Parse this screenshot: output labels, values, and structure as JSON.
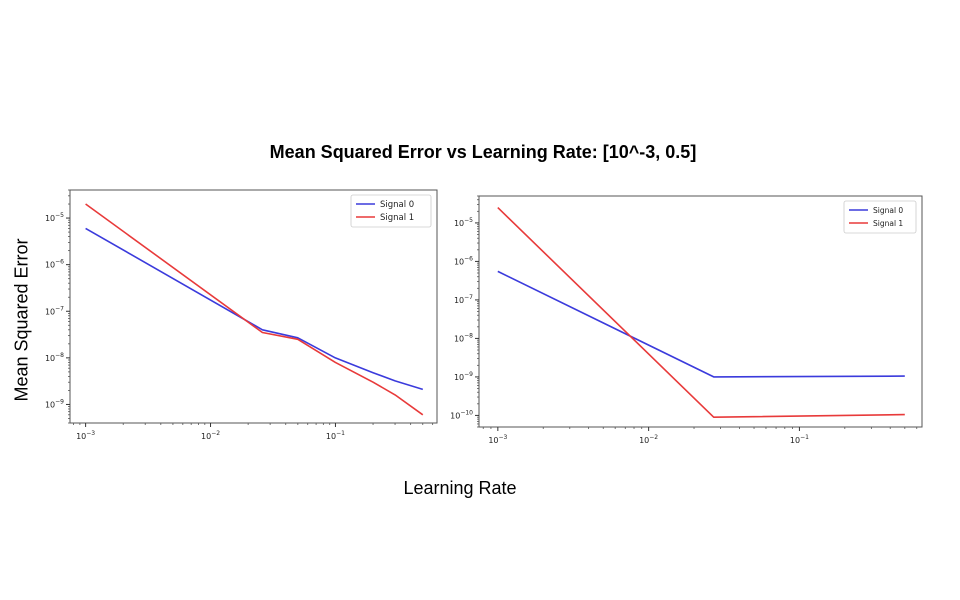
{
  "figure": {
    "title": "Mean Squared Error vs Learning Rate: [10^-3, 0.5]",
    "ylabel": "Mean Squared Error",
    "xlabel": "Learning Rate"
  },
  "chart_data": [
    {
      "type": "line",
      "scale": "log-log",
      "xlim": [
        0.00075,
        0.65
      ],
      "ylim": [
        4e-10,
        4e-05
      ],
      "xticks": [
        {
          "value": 0.001,
          "label": "10^-3"
        },
        {
          "value": 0.01,
          "label": "10^-2"
        },
        {
          "value": 0.1,
          "label": "10^-1"
        }
      ],
      "yticks": [
        {
          "value": 1e-09,
          "label": "10^-9"
        },
        {
          "value": 1e-08,
          "label": "10^-8"
        },
        {
          "value": 1e-07,
          "label": "10^-7"
        },
        {
          "value": 1e-06,
          "label": "10^-6"
        },
        {
          "value": 1e-05,
          "label": "10^-5"
        }
      ],
      "legend": "upper right",
      "series": [
        {
          "name": "Signal 0",
          "color": "#3b3bdc",
          "x": [
            0.001,
            0.026,
            0.05,
            0.1,
            0.2,
            0.3,
            0.5
          ],
          "y": [
            6e-06,
            4e-08,
            2.7e-08,
            1e-08,
            4.8e-09,
            3.2e-09,
            2.1e-09
          ]
        },
        {
          "name": "Signal 1",
          "color": "#e83a3a",
          "x": [
            0.001,
            0.026,
            0.05,
            0.1,
            0.2,
            0.3,
            0.5
          ],
          "y": [
            2e-05,
            3.5e-08,
            2.5e-08,
            8e-09,
            3e-09,
            1.6e-09,
            6e-10
          ]
        }
      ]
    },
    {
      "type": "line",
      "scale": "log-log",
      "xlim": [
        0.00075,
        0.65
      ],
      "ylim": [
        5e-11,
        5e-05
      ],
      "xticks": [
        {
          "value": 0.001,
          "label": "10^-3"
        },
        {
          "value": 0.01,
          "label": "10^-2"
        },
        {
          "value": 0.1,
          "label": "10^-1"
        }
      ],
      "yticks": [
        {
          "value": 1e-10,
          "label": "10^-10"
        },
        {
          "value": 1e-09,
          "label": "10^-9"
        },
        {
          "value": 1e-08,
          "label": "10^-8"
        },
        {
          "value": 1e-07,
          "label": "10^-7"
        },
        {
          "value": 1e-06,
          "label": "10^-6"
        },
        {
          "value": 1e-05,
          "label": "10^-5"
        }
      ],
      "legend": "upper right",
      "series": [
        {
          "name": "Signal 0",
          "color": "#3b3bdc",
          "x": [
            0.001,
            0.027,
            0.5
          ],
          "y": [
            5.5e-07,
            1e-09,
            1.05e-09
          ]
        },
        {
          "name": "Signal 1",
          "color": "#e83a3a",
          "x": [
            0.001,
            0.027,
            0.5
          ],
          "y": [
            2.5e-05,
            9e-11,
            1.05e-10
          ]
        }
      ]
    }
  ]
}
